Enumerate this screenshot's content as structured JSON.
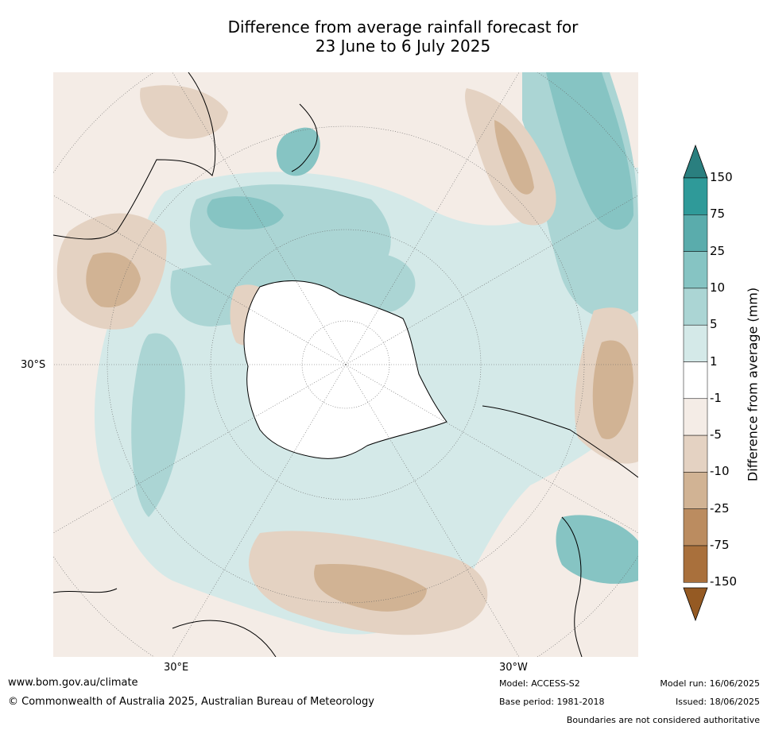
{
  "title_line1": "Difference from average rainfall forecast for",
  "title_line2": "23 June to 6 July 2025",
  "map": {
    "lat_label": "30°S",
    "lon_label_left": "30°E",
    "lon_label_right": "30°W"
  },
  "colorbar": {
    "title": "Difference from average (mm)",
    "ticks": [
      "150",
      "75",
      "25",
      "10",
      "5",
      "1",
      "-1",
      "-5",
      "-10",
      "-25",
      "-75",
      "-150"
    ],
    "colors": [
      "#2a7f7f",
      "#2f9a99",
      "#5aacac",
      "#86c4c3",
      "#abd5d4",
      "#d4e9e8",
      "#ffffff",
      "#f4ece6",
      "#e4d2c2",
      "#d1b394",
      "#bb8c60",
      "#a9703c",
      "#955a23"
    ]
  },
  "footer": {
    "website": "www.bom.gov.au/climate",
    "copyright": "© Commonwealth of Australia 2025, Australian Bureau of Meteorology",
    "model": "Model: ACCESS-S2",
    "base_period": "Base period: 1981-2018",
    "model_run": "Model run: 16/06/2025",
    "issued": "Issued: 18/06/2025",
    "disclaimer": "Boundaries are not considered authoritative"
  }
}
